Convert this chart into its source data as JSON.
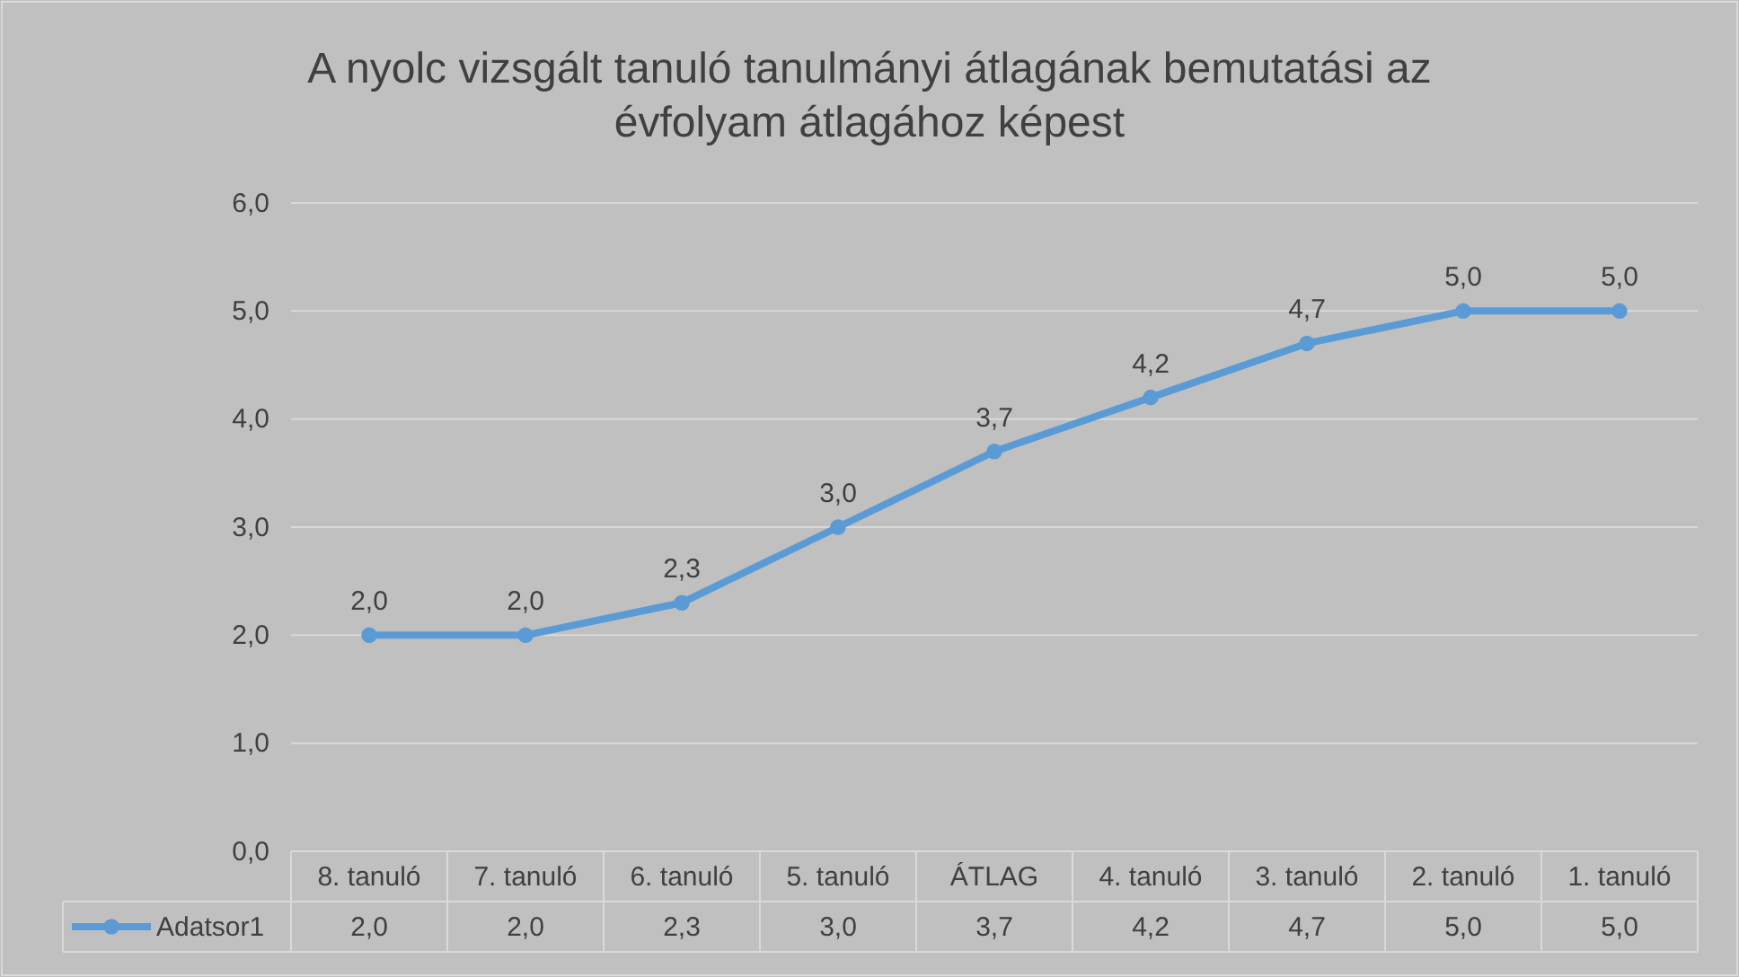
{
  "chart_data": {
    "type": "line",
    "title": "A nyolc vizsgált tanuló tanulmányi átlagának bemutatási az évfolyam átlagához képest",
    "categories": [
      "8. tanuló",
      "7. tanuló",
      "6. tanuló",
      "5. tanuló",
      "ÁTLAG",
      "4. tanuló",
      "3. tanuló",
      "2. tanuló",
      "1. tanuló"
    ],
    "series": [
      {
        "name": "Adatsor1",
        "color": "#5b9bd5",
        "values": [
          2.0,
          2.0,
          2.3,
          3.0,
          3.7,
          4.2,
          4.7,
          5.0,
          5.0
        ],
        "value_labels": [
          "2,0",
          "2,0",
          "2,3",
          "3,0",
          "3,7",
          "4,2",
          "4,7",
          "5,0",
          "5,0"
        ]
      }
    ],
    "ylim": [
      0,
      6
    ],
    "yticks": [
      {
        "value": 0,
        "label": "0,0"
      },
      {
        "value": 1,
        "label": "1,0"
      },
      {
        "value": 2,
        "label": "2,0"
      },
      {
        "value": 3,
        "label": "3,0"
      },
      {
        "value": 4,
        "label": "4,0"
      },
      {
        "value": 5,
        "label": "5,0"
      },
      {
        "value": 6,
        "label": "6,0"
      }
    ],
    "grid": "y",
    "legend": "bottom",
    "marker": "circle",
    "line_style": "solid"
  }
}
